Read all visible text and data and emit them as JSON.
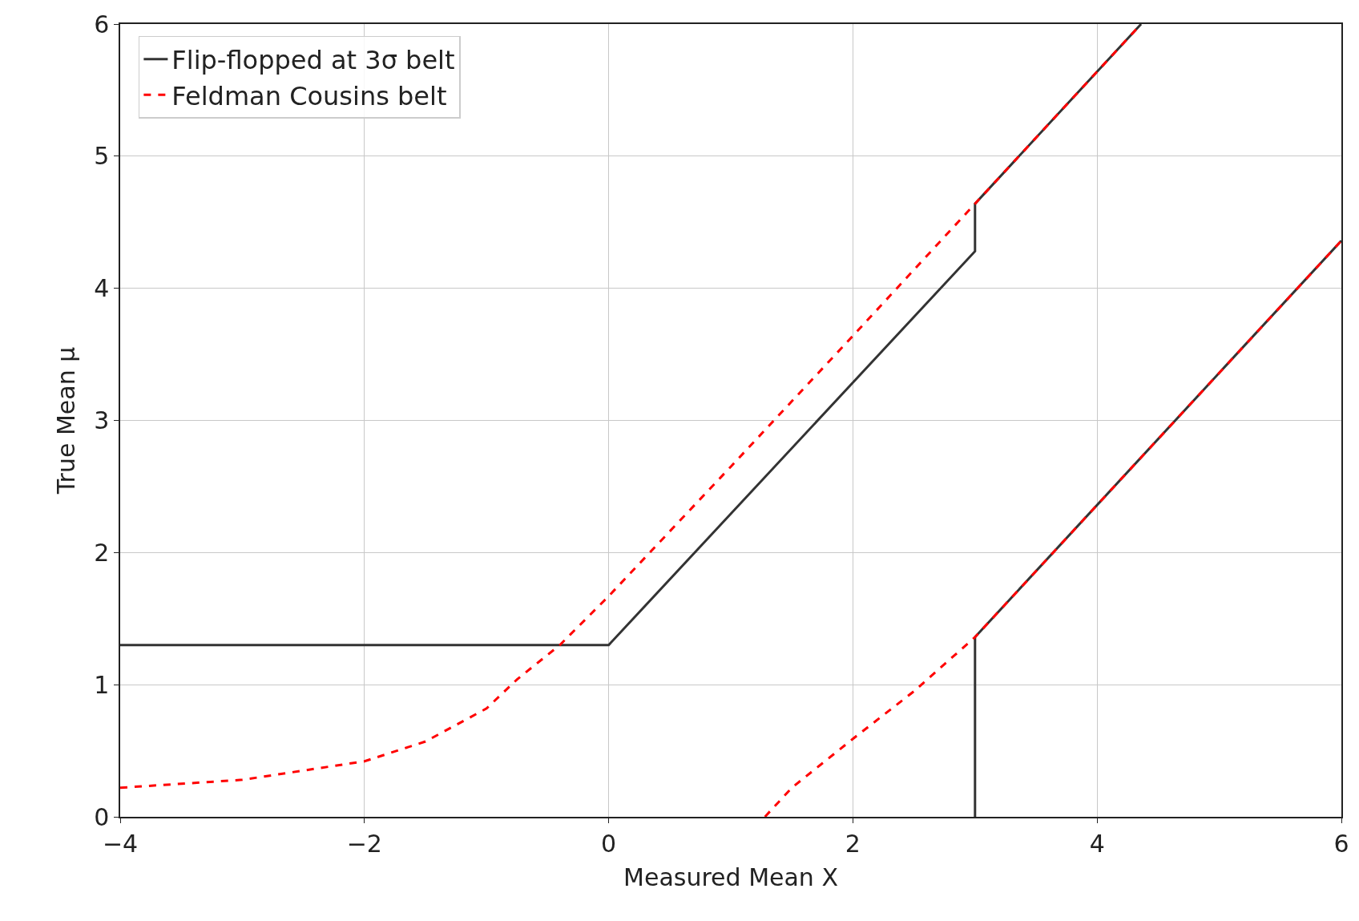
{
  "chart_data": {
    "type": "line",
    "xlabel": "Measured Mean X",
    "ylabel": "True Mean μ",
    "xlim": [
      -4,
      6
    ],
    "ylim": [
      0,
      6
    ],
    "xticks": [
      -4,
      -2,
      0,
      2,
      4,
      6
    ],
    "yticks": [
      0,
      1,
      2,
      3,
      4,
      5,
      6
    ],
    "grid": true,
    "legend": "top left",
    "marker": "none",
    "series": [
      {
        "name": "Flip-flopped at 3σ belt",
        "color": "#333333",
        "line_style": "solid",
        "x": [
          -4,
          0,
          3,
          3,
          4.36,
          null,
          3,
          3,
          6
        ],
        "values": [
          1.3,
          1.3,
          4.28,
          4.64,
          6,
          null,
          0,
          1.36,
          4.36
        ]
      },
      {
        "name": "Feldman Cousins belt",
        "color": "#ff0000",
        "line_style": "dashed",
        "x": [
          -4,
          -3,
          -2,
          -1.5,
          -1,
          -0.75,
          -0.4,
          0,
          1,
          2,
          3,
          4.36,
          null,
          1.28,
          1.5,
          2,
          2.5,
          3,
          6
        ],
        "values": [
          0.22,
          0.28,
          0.42,
          0.57,
          0.82,
          1.04,
          1.3,
          1.67,
          2.65,
          3.64,
          4.64,
          6,
          null,
          0,
          0.22,
          0.59,
          0.95,
          1.36,
          4.36
        ]
      }
    ]
  }
}
